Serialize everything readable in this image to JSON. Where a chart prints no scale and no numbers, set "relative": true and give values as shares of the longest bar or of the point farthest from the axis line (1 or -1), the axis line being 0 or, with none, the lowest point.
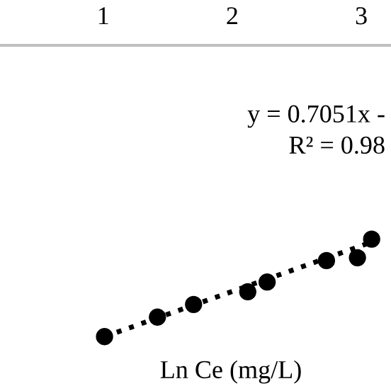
{
  "chart_data": {
    "type": "scatter",
    "relative": true,
    "xlabel": "Ln Ce (mg/L)",
    "xlim": [
      0.2,
      3.23
    ],
    "xticks": [
      1,
      2,
      3
    ],
    "grid": false,
    "legend": false,
    "tick_labels": "x",
    "marker": "circle",
    "annotations": [
      "y = 0.7051x -",
      "R² = 0.98"
    ],
    "series": [
      {
        "color": "#000000",
        "x": [
          1.01,
          1.42,
          1.7,
          2.12,
          2.27,
          2.73,
          2.97,
          3.08
        ],
        "values": [
          0,
          0.2,
          0.33,
          0.46,
          0.56,
          0.78,
          0.81,
          1
        ]
      },
      {
        "type": "line",
        "line_style": "dotted",
        "marker": "none",
        "color": "#000000",
        "x": [
          1.01,
          3.08
        ],
        "values": [
          0,
          0.97
        ]
      }
    ]
  }
}
